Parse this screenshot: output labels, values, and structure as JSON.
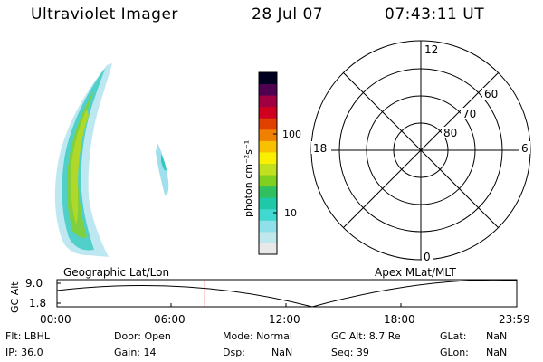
{
  "header": {
    "instrument": "Ultraviolet Imager",
    "date": "28 Jul 07",
    "time": "07:43:11 UT"
  },
  "colorbar": {
    "label": "photon cm⁻²s⁻¹",
    "ticks": [
      "100",
      "10"
    ],
    "scale": "log",
    "colors": [
      "#e8e8e8",
      "#bfe8ec",
      "#8fe0e8",
      "#40d8d0",
      "#20c8a8",
      "#30c060",
      "#80d020",
      "#c0e020",
      "#f8f000",
      "#f8c000",
      "#f08000",
      "#e04000",
      "#d00020",
      "#a00040",
      "#500050",
      "#000020"
    ]
  },
  "polar": {
    "labels": {
      "top": "12",
      "left": "18",
      "right": "6",
      "bottom": "0"
    },
    "latitudes": [
      "80",
      "70",
      "60"
    ]
  },
  "timeline": {
    "left_label": "Geographic Lat/Lon",
    "right_label": "Apex MLat/MLT",
    "yaxis_label": "GC Alt",
    "yticks": [
      "9.0",
      "1.8"
    ],
    "xticks": [
      "00:00",
      "06:00",
      "12:00",
      "18:00",
      "23:59"
    ],
    "marker_time": "07:43",
    "marker_color": "#e02020"
  },
  "info": {
    "filter": "Flt: LBHL",
    "ip": "IP: 36.0",
    "door": "Door: Open",
    "gain": "Gain: 14",
    "mode": "Mode: Normal",
    "dsp": "Dsp:",
    "dsp_value": "NaN",
    "gc_alt": "GC Alt: 8.7 Re",
    "seq": "Seq: 39",
    "glat": "GLat:",
    "glat_value": "NaN",
    "glon": "GLon:",
    "glon_value": "NaN"
  }
}
